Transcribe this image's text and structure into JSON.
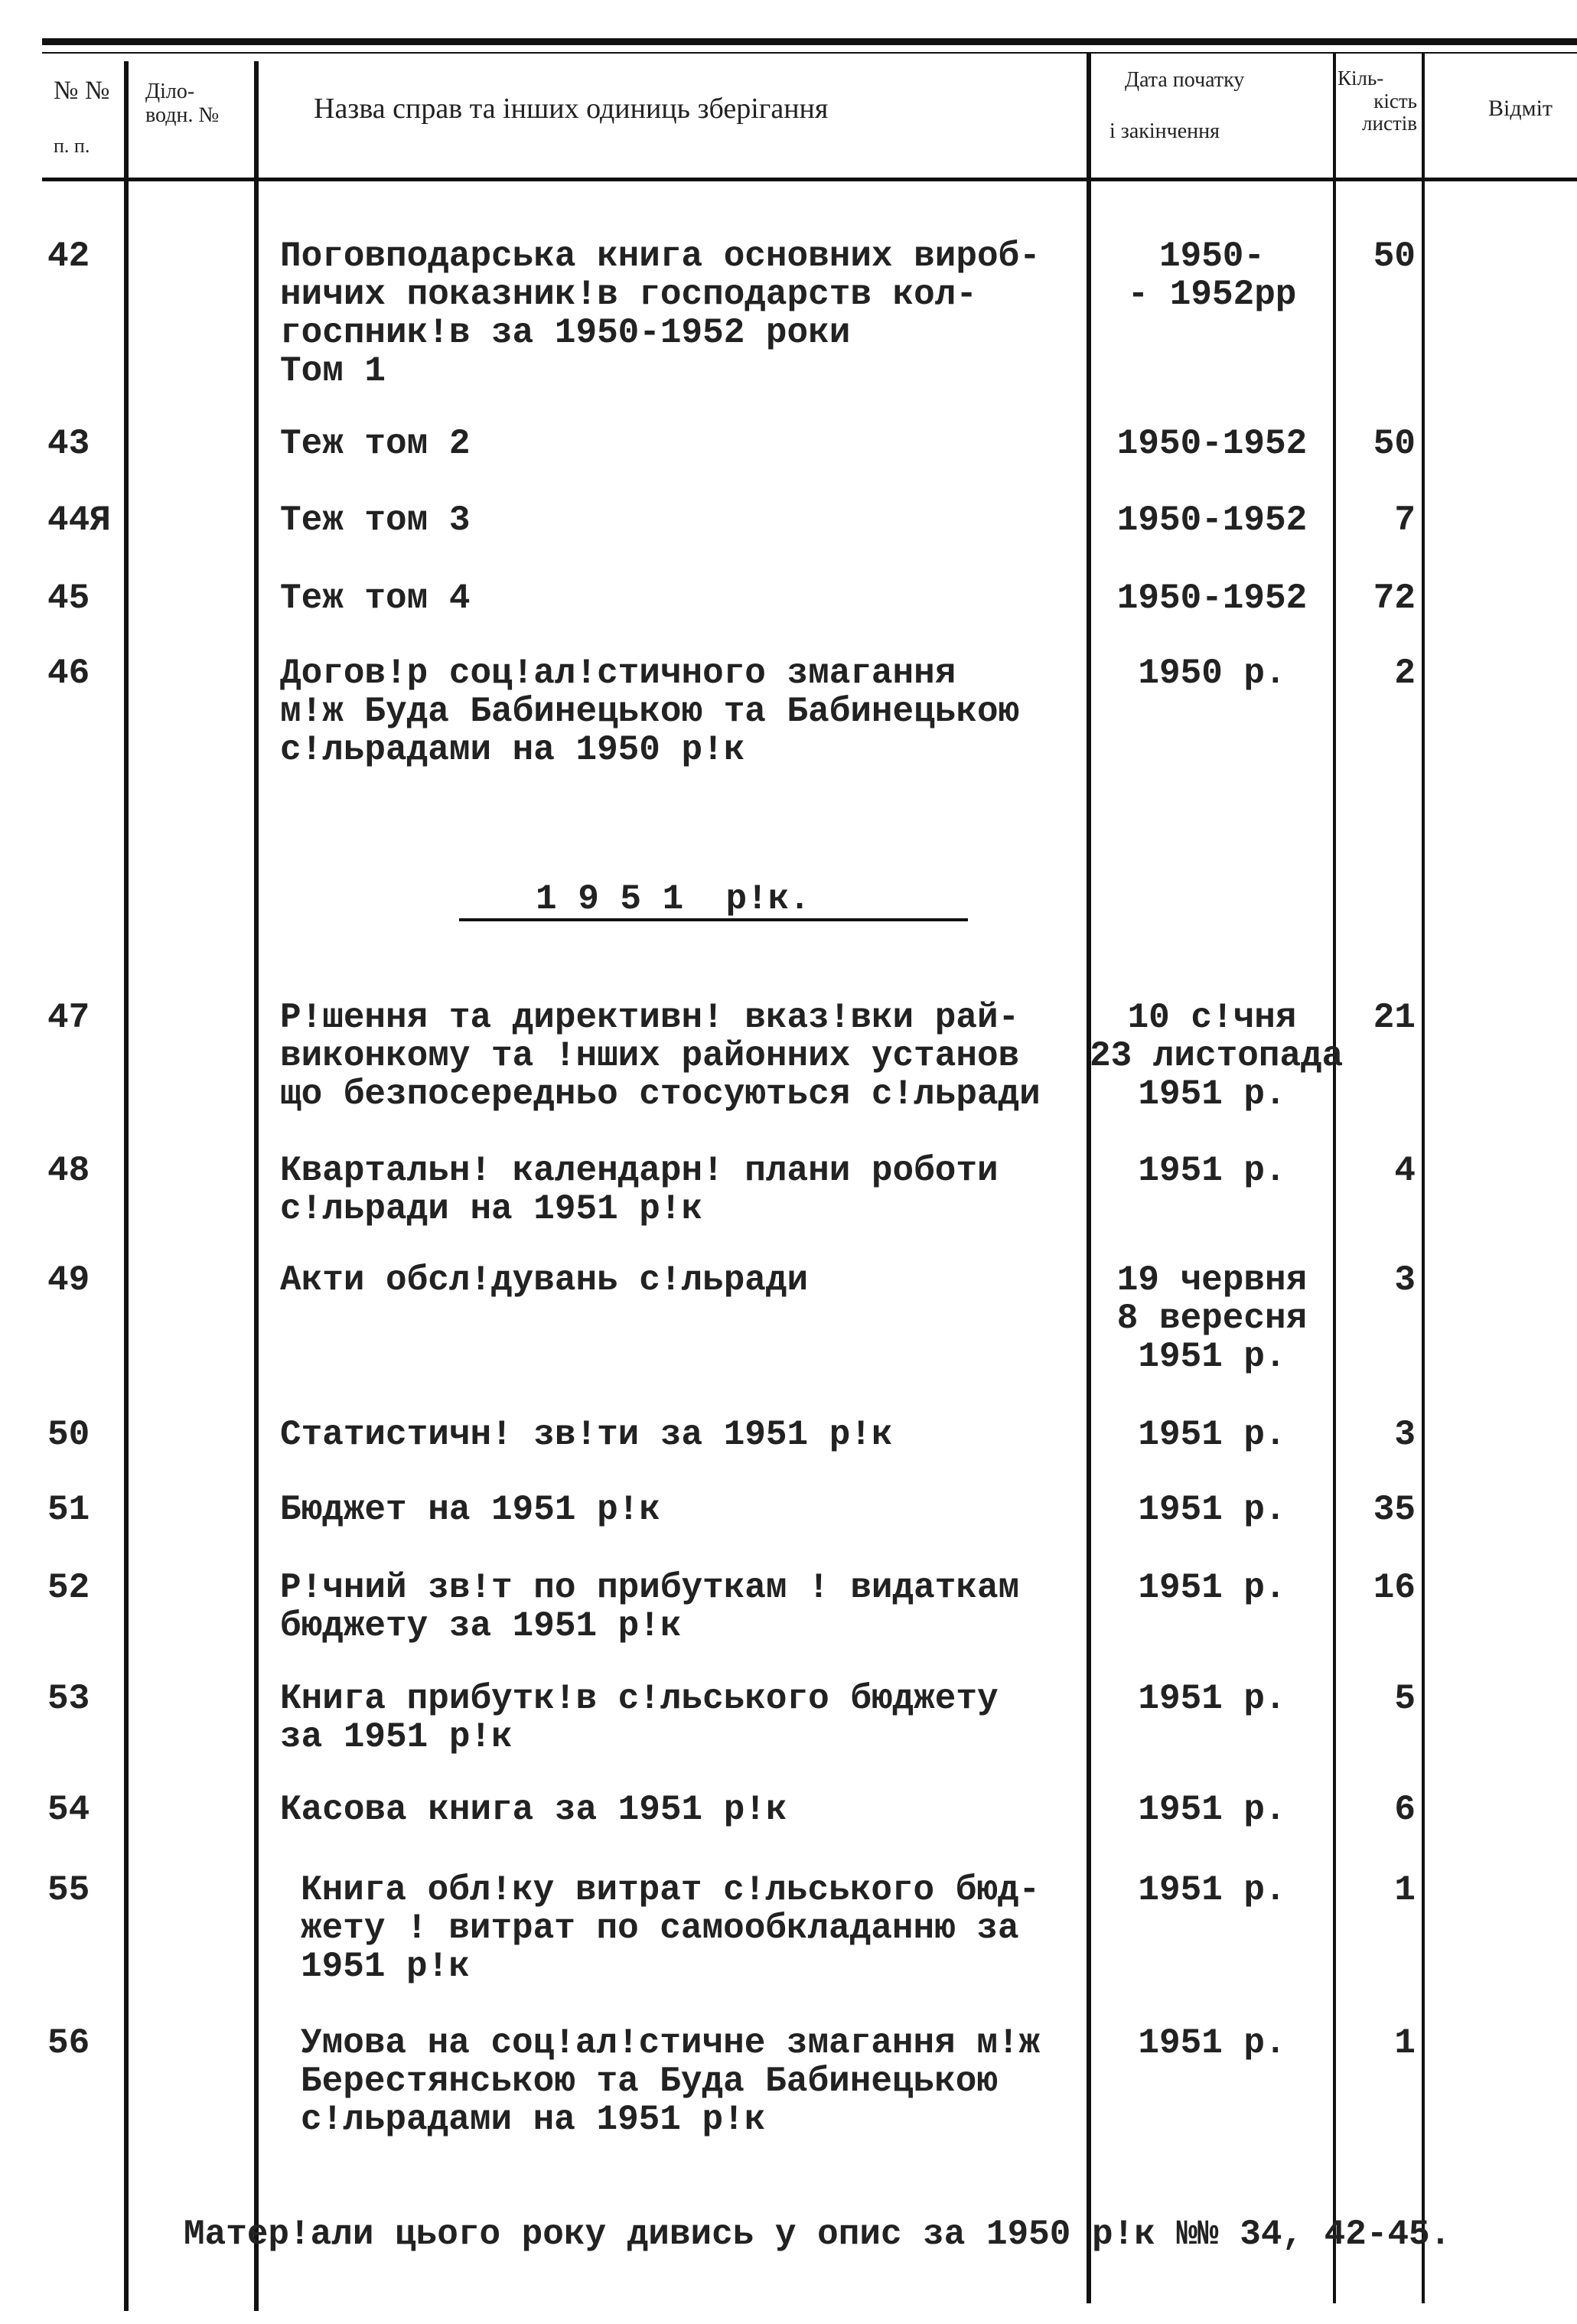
{
  "header": {
    "col_num": [
      "№ №",
      "п. п."
    ],
    "col_office": [
      "Діло-",
      "водн. №"
    ],
    "col_title": "Назва справ та інших одиниць зберігання",
    "col_dates": [
      "Дата початку",
      "і закінчення"
    ],
    "col_count": [
      "Кіль-",
      "кість",
      "листів"
    ],
    "col_notes": "Відміт"
  },
  "rows": [
    {
      "num": "42",
      "title": [
        "Поговподарська книга основних вироб-",
        "ничих показник!в господарств кол-",
        "госпник!в за 1950-1952 роки",
        "Том 1"
      ],
      "date": [
        "1950-",
        "- 1952рр"
      ],
      "count": "50"
    },
    {
      "num": "43",
      "title": [
        "Теж том 2"
      ],
      "date": [
        "1950-1952"
      ],
      "count": "50"
    },
    {
      "num": "44Я",
      "title": [
        "Теж том 3"
      ],
      "date": [
        "1950-1952"
      ],
      "count": "7"
    },
    {
      "num": "45",
      "title": [
        "Теж том 4"
      ],
      "date": [
        "1950-1952"
      ],
      "count": "72"
    },
    {
      "num": "46",
      "title": [
        "Догов!р соц!ал!стичного змагання",
        "м!ж Буда Бабинецькою та Бабинецькою",
        "с!льрадами на 1950 р!к"
      ],
      "date": [
        "1950 р."
      ],
      "count": "2"
    },
    {
      "num": "47",
      "title": [
        "Р!шення та директивн! вказ!вки рай-",
        "виконкому та !нших районних установ",
        "що безпосередньо стосуються с!льради"
      ],
      "date": [
        "10 с!чня",
        "23 листопада",
        "1951 р."
      ],
      "count": "21"
    },
    {
      "num": "48",
      "title": [
        "Квартальн! календарн! плани роботи",
        "с!льради на 1951 р!к"
      ],
      "date": [
        "1951 р."
      ],
      "count": "4"
    },
    {
      "num": "49",
      "title": [
        "Акти обсл!дувань с!льради"
      ],
      "date": [
        "19 червня",
        "8 вересня",
        "1951 р."
      ],
      "count": "3"
    },
    {
      "num": "50",
      "title": [
        "Статистичн! зв!ти за 1951 р!к"
      ],
      "date": [
        "1951 р."
      ],
      "count": "3"
    },
    {
      "num": "51",
      "title": [
        "Бюджет на 1951 р!к"
      ],
      "date": [
        "1951 р."
      ],
      "count": "35"
    },
    {
      "num": "52",
      "title": [
        "Р!чний зв!т по прибуткам ! видаткам",
        "бюджету за 1951 р!к"
      ],
      "date": [
        "1951 р."
      ],
      "count": "16"
    },
    {
      "num": "53",
      "title": [
        "Книга прибутк!в с!льського бюджету",
        "за 1951 р!к"
      ],
      "date": [
        "1951 р."
      ],
      "count": "5"
    },
    {
      "num": "54",
      "title": [
        "Касова книга за 1951 р!к"
      ],
      "date": [
        "1951 р."
      ],
      "count": "6"
    },
    {
      "num": "55",
      "title": [
        "Книга обл!ку витрат с!льського бюд-",
        "жету ! витрат по самообкладанню за",
        "1951 р!к"
      ],
      "date": [
        "1951 р."
      ],
      "count": "1"
    },
    {
      "num": "56",
      "title": [
        "Умова на соц!ал!стичне змагання м!ж",
        "Берестянською та Буда Бабинецькою",
        "с!льрадами на 1951 р!к"
      ],
      "date": [
        "1951 р."
      ],
      "count": "1"
    }
  ],
  "section_title": "1 9 5 1  р!к.",
  "footer": "Матер!али цього року дивись у опис за 1950 р!к №№ 34, 42-45."
}
